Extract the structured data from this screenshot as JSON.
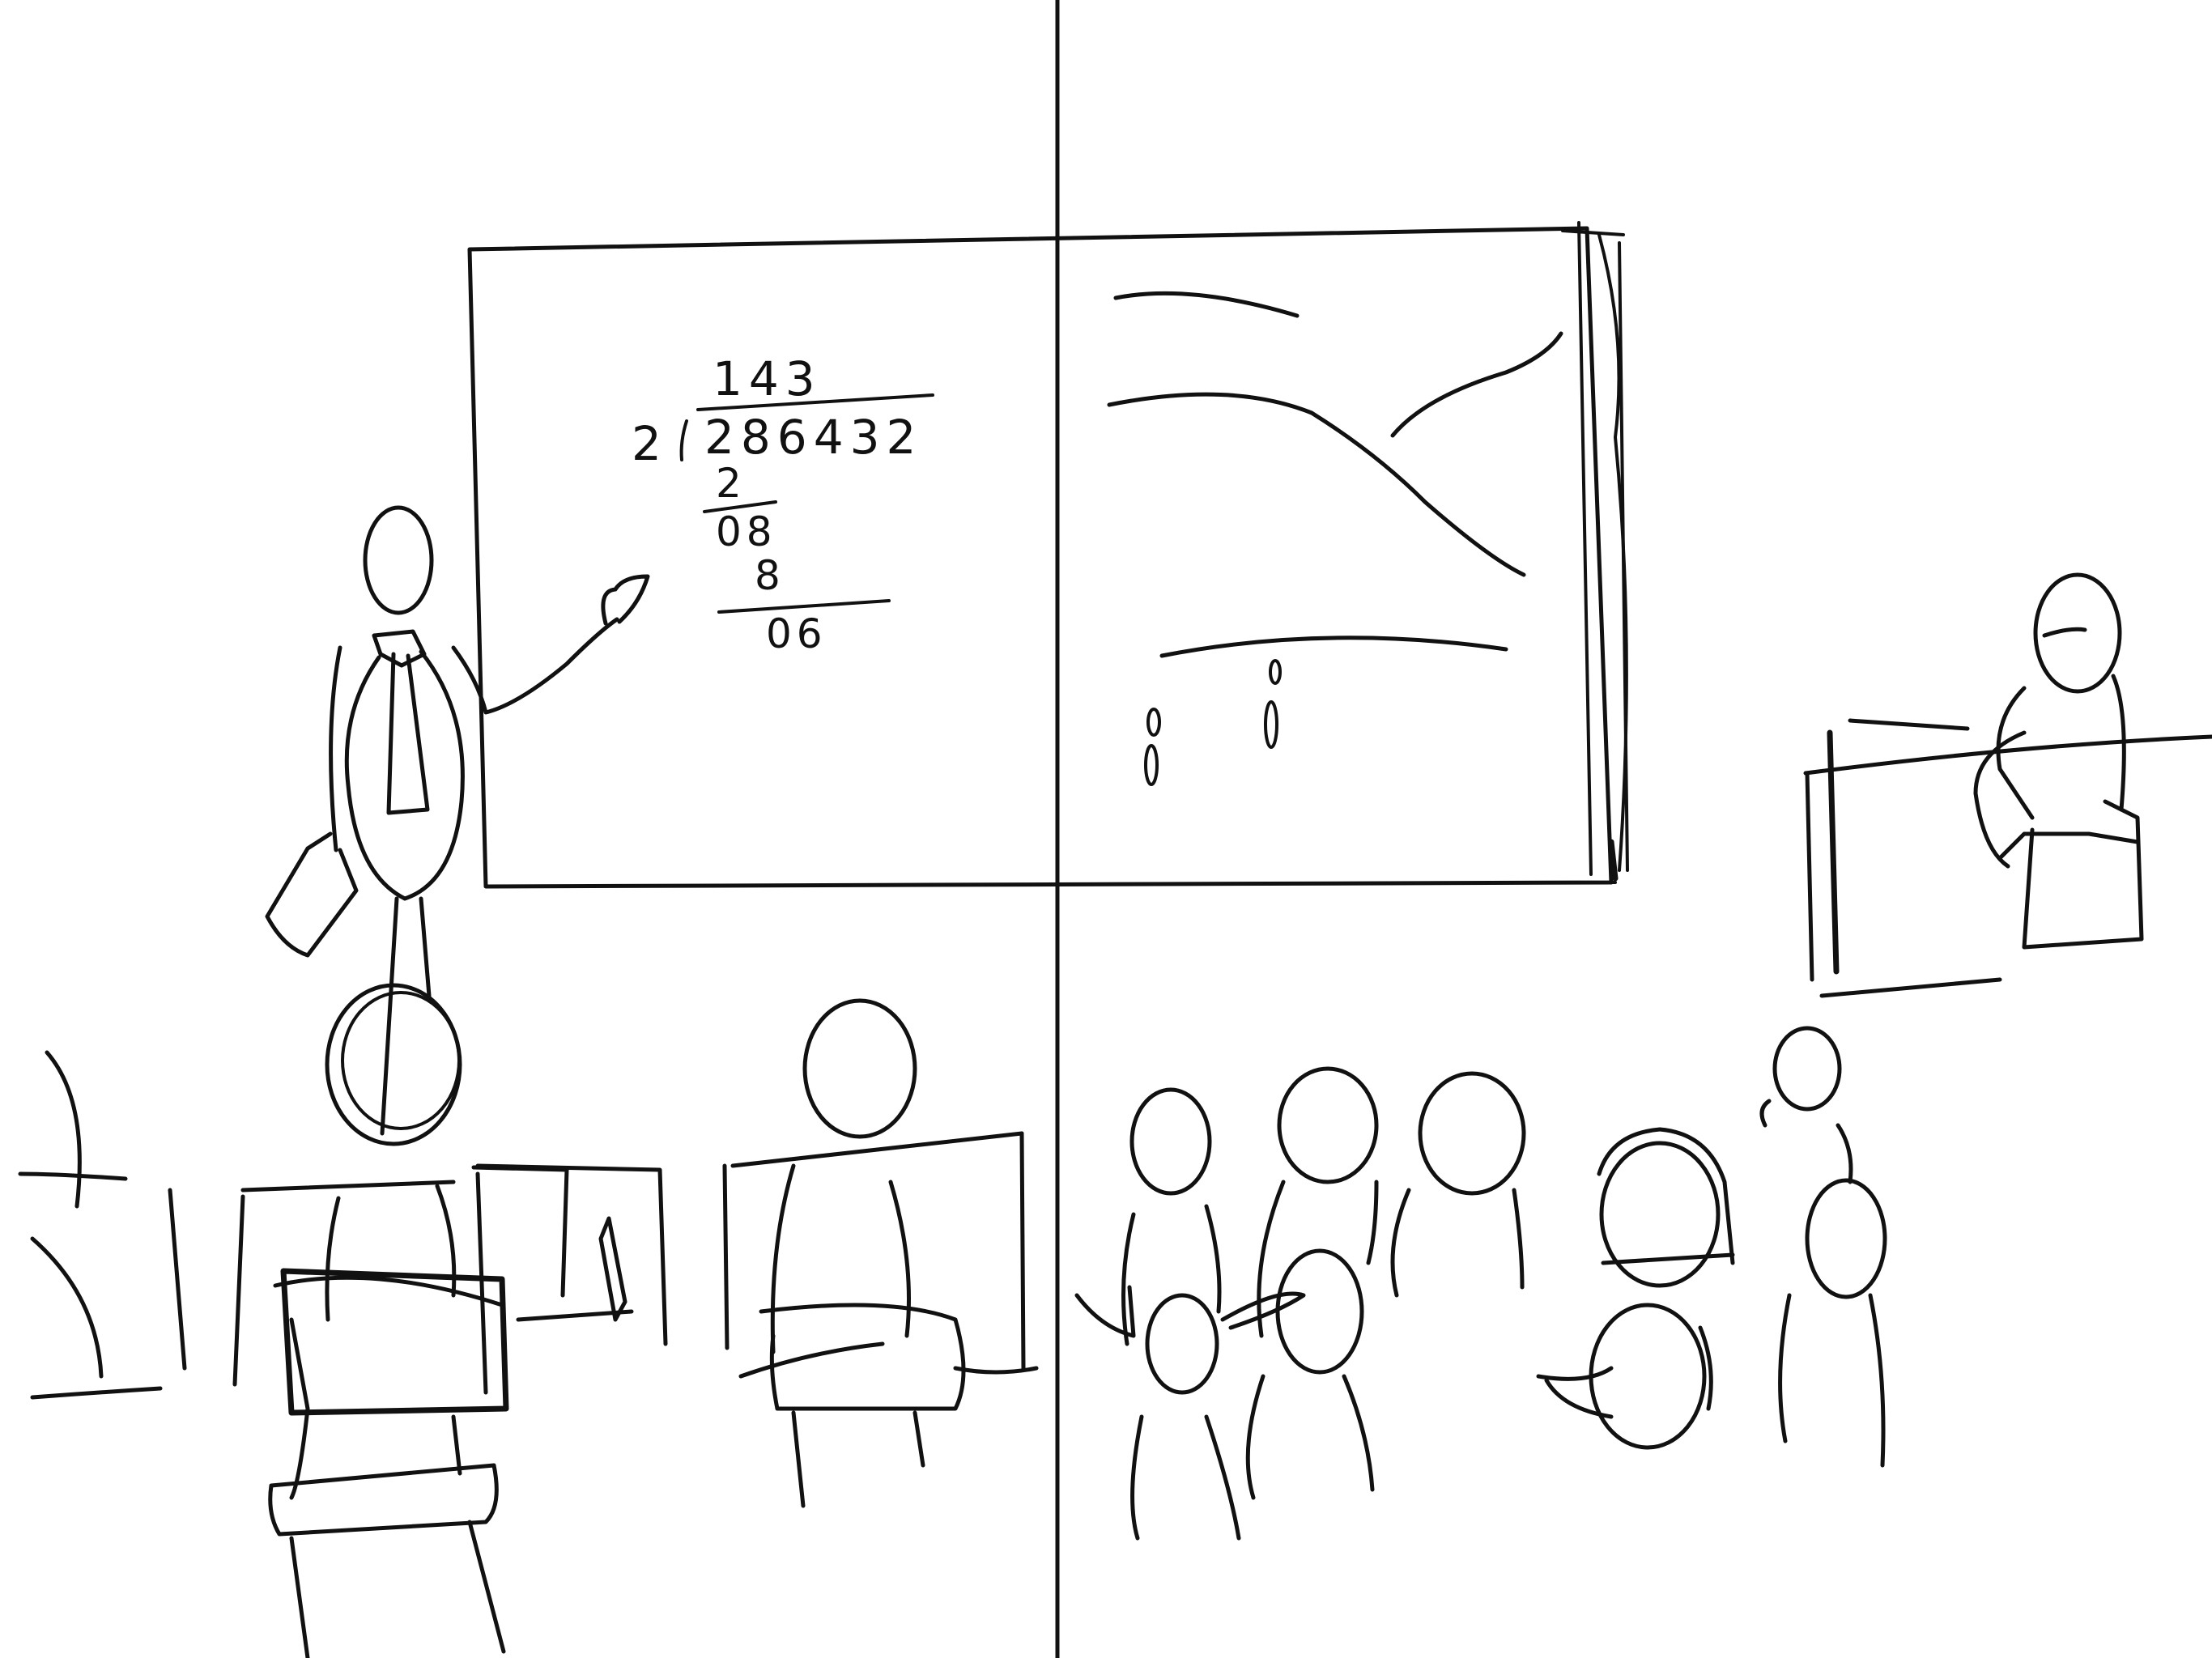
{
  "board": {
    "quotient": "143",
    "divisor": "2",
    "dividend": "286432",
    "step1": "2",
    "remainder1": "08",
    "step2": "8",
    "remainder2": "06"
  }
}
